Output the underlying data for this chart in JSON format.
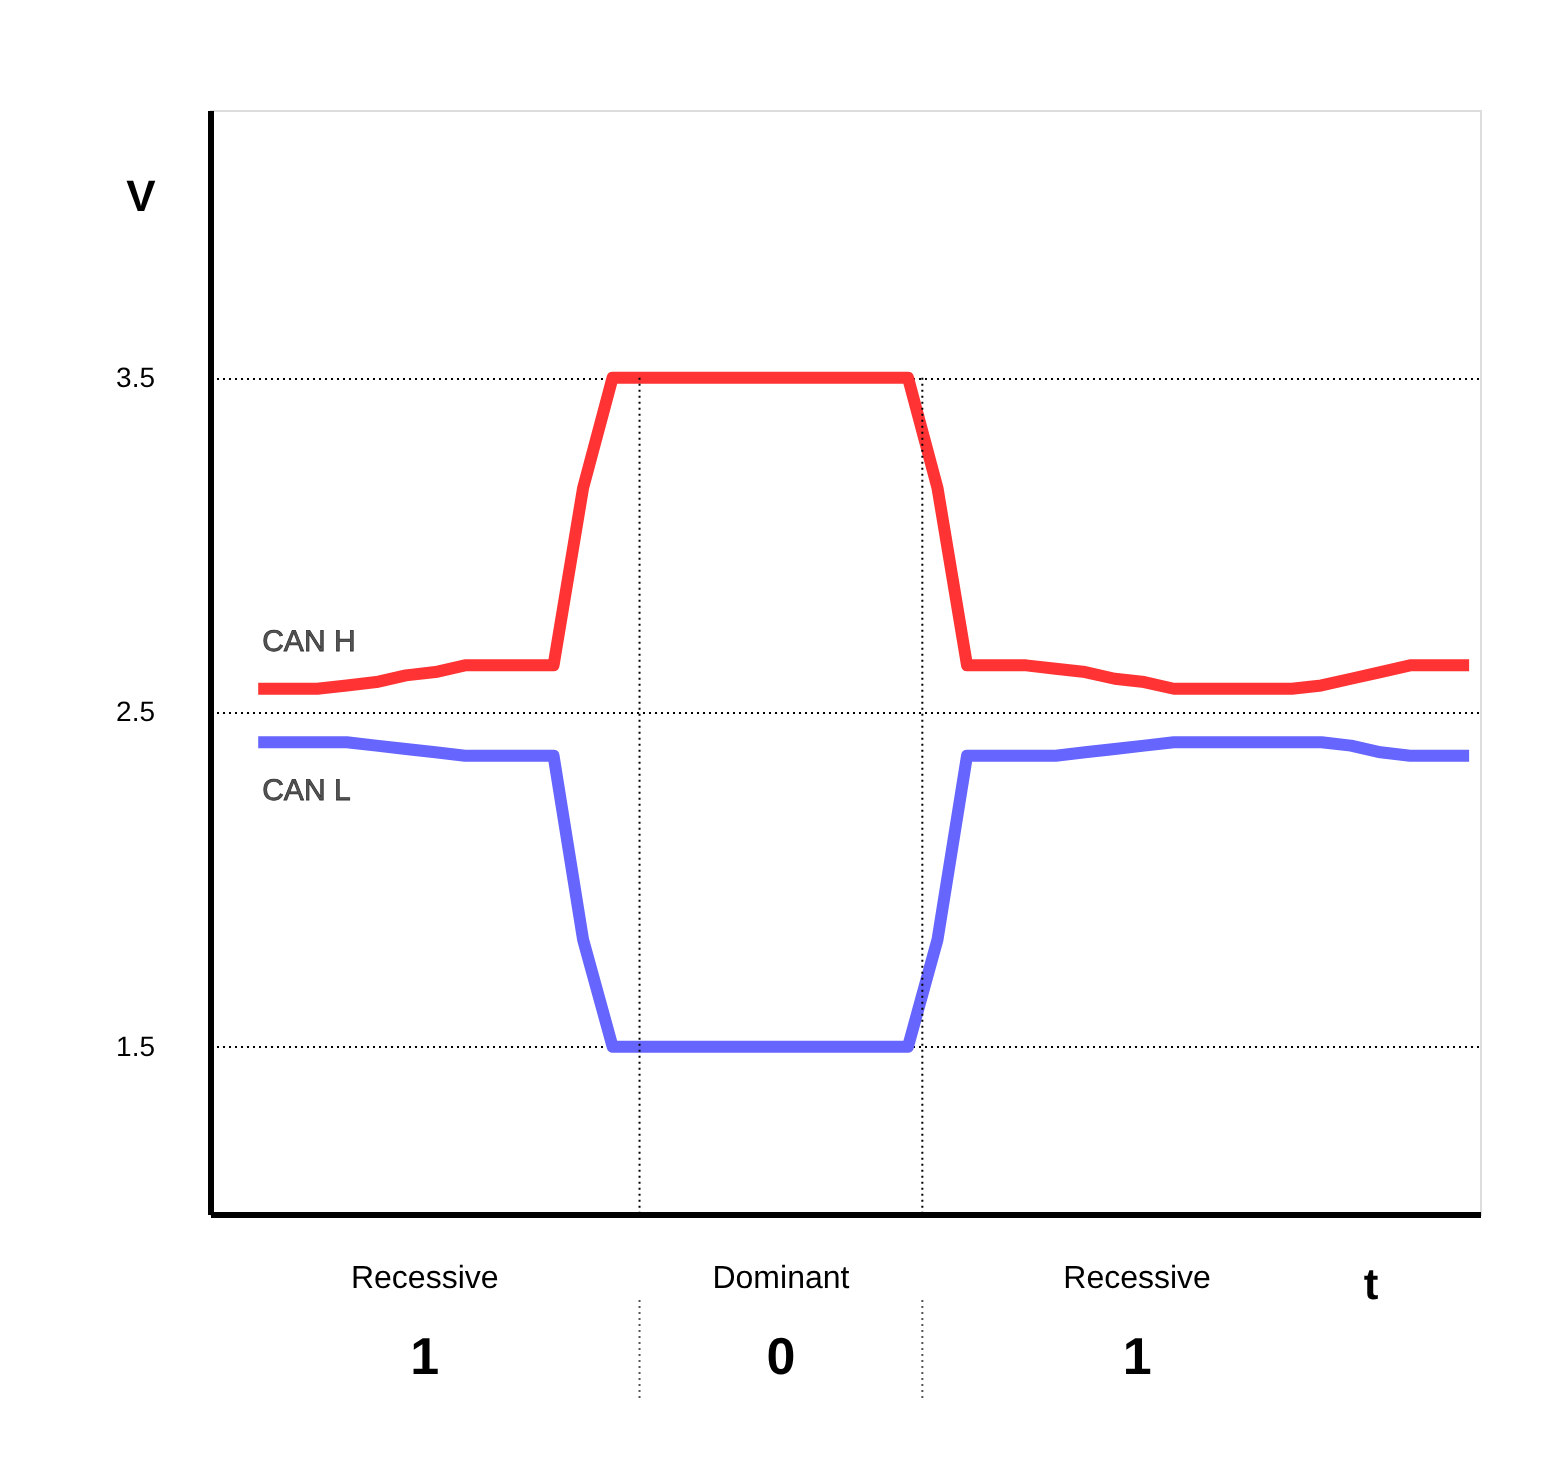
{
  "chart_data": {
    "type": "line",
    "ylabel": "V",
    "xlabel": "t",
    "categories": [
      null,
      null,
      null,
      null,
      null,
      null,
      null,
      null,
      null,
      null,
      null,
      null,
      null,
      null,
      null,
      null,
      null,
      null,
      null,
      null,
      null,
      null,
      null,
      null,
      null,
      null,
      null,
      null,
      null,
      null,
      null,
      null,
      null,
      null,
      null,
      null,
      null,
      null,
      null,
      null,
      null,
      null
    ],
    "ylim": [
      1.0,
      4.3
    ],
    "yticks": [
      1.5,
      2.5,
      3.5
    ],
    "tick_labels": "y",
    "grid": "y",
    "line_style": "solid",
    "series": [
      {
        "name": "CAN H",
        "color": "#ff3333",
        "values": [
          2.57,
          2.57,
          2.57,
          2.58,
          2.59,
          2.61,
          2.62,
          2.64,
          2.64,
          2.64,
          2.64,
          3.17,
          3.5,
          3.5,
          3.5,
          3.5,
          3.5,
          3.5,
          3.5,
          3.5,
          3.5,
          3.5,
          3.5,
          3.17,
          2.64,
          2.64,
          2.64,
          2.63,
          2.62,
          2.6,
          2.59,
          2.57,
          2.57,
          2.57,
          2.57,
          2.57,
          2.58,
          2.6,
          2.62,
          2.64,
          2.64,
          2.64
        ]
      },
      {
        "name": "CAN L",
        "color": "#6666ff",
        "values": [
          2.41,
          2.41,
          2.41,
          2.41,
          2.4,
          2.39,
          2.38,
          2.37,
          2.37,
          2.37,
          2.37,
          1.82,
          1.5,
          1.5,
          1.5,
          1.5,
          1.5,
          1.5,
          1.5,
          1.5,
          1.5,
          1.5,
          1.5,
          1.82,
          2.37,
          2.37,
          2.37,
          2.37,
          2.38,
          2.39,
          2.4,
          2.41,
          2.41,
          2.41,
          2.41,
          2.41,
          2.41,
          2.4,
          2.38,
          2.37,
          2.37,
          2.37
        ]
      }
    ],
    "annotations": [
      "Recessive",
      "Dominant",
      "Recessive",
      "1",
      "0",
      "1"
    ]
  }
}
